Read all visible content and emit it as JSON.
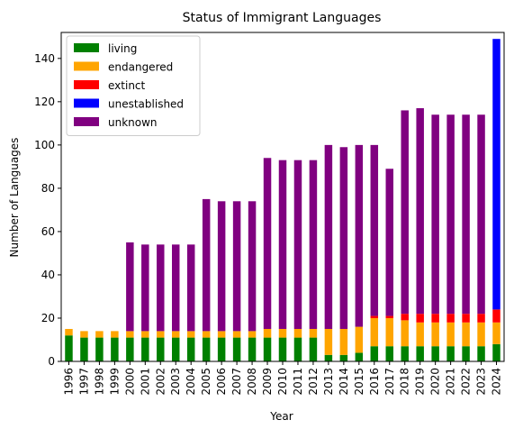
{
  "chart_data": {
    "type": "bar",
    "stacked": true,
    "title": "Status of Immigrant Languages",
    "xlabel": "Year",
    "ylabel": "Number of Languages",
    "ylim": [
      0,
      152
    ],
    "yticks": [
      0,
      20,
      40,
      60,
      80,
      100,
      120,
      140
    ],
    "legend_position": "top-left",
    "grid": false,
    "categories": [
      "1996",
      "1997",
      "1998",
      "1999",
      "2000",
      "2001",
      "2002",
      "2003",
      "2004",
      "2005",
      "2006",
      "2007",
      "2008",
      "2009",
      "2010",
      "2011",
      "2012",
      "2013",
      "2014",
      "2015",
      "2016",
      "2017",
      "2018",
      "2019",
      "2020",
      "2021",
      "2022",
      "2023",
      "2024"
    ],
    "series": [
      {
        "name": "living",
        "color": "#008000",
        "values": [
          12,
          11,
          11,
          11,
          11,
          11,
          11,
          11,
          11,
          11,
          11,
          11,
          11,
          11,
          11,
          11,
          11,
          3,
          3,
          4,
          7,
          7,
          7,
          7,
          7,
          7,
          7,
          7,
          8
        ]
      },
      {
        "name": "endangered",
        "color": "#ffa500",
        "values": [
          3,
          3,
          3,
          3,
          3,
          3,
          3,
          3,
          3,
          3,
          3,
          3,
          3,
          4,
          4,
          4,
          4,
          12,
          12,
          12,
          13,
          13,
          12,
          11,
          11,
          11,
          11,
          11,
          10
        ]
      },
      {
        "name": "extinct",
        "color": "#ff0000",
        "values": [
          0,
          0,
          0,
          0,
          0,
          0,
          0,
          0,
          0,
          0,
          0,
          0,
          0,
          0,
          0,
          0,
          0,
          0,
          0,
          0,
          1,
          1,
          3,
          4,
          4,
          4,
          4,
          4,
          6
        ]
      },
      {
        "name": "unestablished",
        "color": "#0000ff",
        "values": [
          0,
          0,
          0,
          0,
          0,
          0,
          0,
          0,
          0,
          0,
          0,
          0,
          0,
          0,
          0,
          0,
          0,
          0,
          0,
          0,
          0,
          0,
          0,
          0,
          0,
          0,
          0,
          0,
          125
        ]
      },
      {
        "name": "unknown",
        "color": "#800080",
        "values": [
          0,
          0,
          0,
          0,
          41,
          40,
          40,
          40,
          40,
          61,
          60,
          60,
          60,
          79,
          78,
          78,
          78,
          85,
          84,
          84,
          79,
          68,
          94,
          95,
          92,
          92,
          92,
          92,
          0
        ]
      }
    ]
  }
}
